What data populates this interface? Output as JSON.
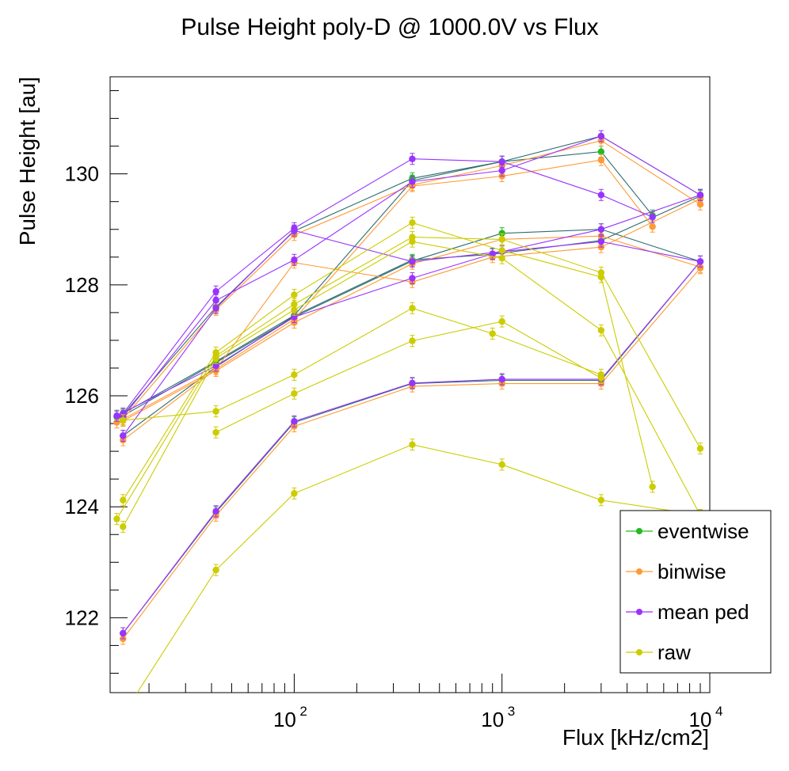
{
  "chart_data": {
    "type": "line",
    "title": "Pulse Height poly-D @ 1000.0V vs Flux",
    "xlabel": "Flux [kHz/cm2]",
    "ylabel": "Pulse Height [au]",
    "x_scale": "log",
    "xlim": [
      13,
      10000
    ],
    "ylim": [
      120.65,
      131.75
    ],
    "x_ticks": [
      {
        "base": "10",
        "exp": "2",
        "value": 100
      },
      {
        "base": "10",
        "exp": "3",
        "value": 1000
      },
      {
        "base": "10",
        "exp": "4",
        "value": 10000
      }
    ],
    "y_ticks": [
      {
        "label": "122",
        "value": 122
      },
      {
        "label": "124",
        "value": 124
      },
      {
        "label": "126",
        "value": 126
      },
      {
        "label": "128",
        "value": 128
      },
      {
        "label": "130",
        "value": 130
      }
    ],
    "grid": false,
    "legend_position": "bottom-right",
    "legend": [
      {
        "name": "eventwise",
        "color": "#22bb22"
      },
      {
        "name": "binwise",
        "color": "#ff9933"
      },
      {
        "name": "mean ped",
        "color": "#9933ff"
      },
      {
        "name": "raw",
        "color": "#cccc00"
      }
    ],
    "series": [
      {
        "name": "eventwise",
        "color": "#22bb22",
        "line_color": "#2e6e70",
        "points": [
          [
            15,
            125.66
          ],
          [
            42,
            127.6
          ],
          [
            100,
            128.97
          ],
          [
            370,
            129.92
          ],
          [
            1000,
            130.22
          ],
          [
            3000,
            130.68
          ],
          [
            9000,
            129.62
          ]
        ]
      },
      {
        "name": "eventwise",
        "color": "#22bb22",
        "line_color": "#2e6e70",
        "points": [
          [
            15,
            125.64
          ],
          [
            42,
            126.6
          ],
          [
            100,
            127.42
          ],
          [
            370,
            128.43
          ],
          [
            1000,
            128.93
          ],
          [
            3000,
            129.0
          ],
          [
            9000,
            128.42
          ]
        ]
      },
      {
        "name": "eventwise",
        "color": "#22bb22",
        "line_color": "#2e6e70",
        "points": [
          [
            14,
            125.62
          ],
          [
            42,
            126.62
          ],
          [
            100,
            127.45
          ],
          [
            370,
            129.88
          ],
          [
            1000,
            130.22
          ],
          [
            3000,
            130.4
          ],
          [
            5300,
            129.25
          ]
        ]
      },
      {
        "name": "eventwise",
        "color": "#22bb22",
        "line_color": "#2e6e70",
        "points": [
          [
            15,
            125.28
          ],
          [
            42,
            126.52
          ],
          [
            100,
            127.44
          ],
          [
            370,
            128.45
          ],
          [
            900,
            128.55
          ],
          [
            3000,
            128.8
          ],
          [
            9000,
            129.6
          ]
        ]
      },
      {
        "name": "eventwise",
        "color": "#22bb22",
        "line_color": "#2e6e70",
        "points": [
          [
            15,
            121.72
          ],
          [
            42,
            123.9
          ],
          [
            100,
            125.52
          ],
          [
            370,
            126.22
          ],
          [
            1000,
            126.28
          ],
          [
            3000,
            126.28
          ],
          [
            9000,
            128.42
          ]
        ]
      },
      {
        "name": "binwise",
        "color": "#ff9933",
        "line_color": "#ff9933",
        "points": [
          [
            15,
            125.58
          ],
          [
            42,
            127.55
          ],
          [
            100,
            128.9
          ],
          [
            370,
            129.8
          ],
          [
            1000,
            130.15
          ],
          [
            3000,
            130.6
          ],
          [
            9000,
            129.45
          ]
        ]
      },
      {
        "name": "binwise",
        "color": "#ff9933",
        "line_color": "#ff9933",
        "points": [
          [
            15,
            125.55
          ],
          [
            42,
            126.45
          ],
          [
            100,
            127.32
          ],
          [
            370,
            128.38
          ],
          [
            1000,
            128.82
          ],
          [
            3000,
            128.88
          ],
          [
            9000,
            128.32
          ]
        ]
      },
      {
        "name": "binwise",
        "color": "#ff9933",
        "line_color": "#ff9933",
        "points": [
          [
            14,
            125.52
          ],
          [
            42,
            126.48
          ],
          [
            100,
            127.38
          ],
          [
            370,
            129.78
          ],
          [
            1000,
            129.96
          ],
          [
            3000,
            130.25
          ],
          [
            5300,
            129.05
          ]
        ]
      },
      {
        "name": "binwise",
        "color": "#ff9933",
        "line_color": "#ff9933",
        "points": [
          [
            15,
            125.2
          ],
          [
            42,
            126.48
          ],
          [
            100,
            128.4
          ],
          [
            370,
            128.05
          ],
          [
            900,
            128.5
          ],
          [
            3000,
            128.68
          ],
          [
            9000,
            129.55
          ]
        ]
      },
      {
        "name": "binwise",
        "color": "#ff9933",
        "line_color": "#ff9933",
        "points": [
          [
            15,
            121.62
          ],
          [
            42,
            123.84
          ],
          [
            100,
            125.45
          ],
          [
            370,
            126.17
          ],
          [
            1000,
            126.22
          ],
          [
            3000,
            126.22
          ],
          [
            9000,
            128.3
          ]
        ]
      },
      {
        "name": "mean ped",
        "color": "#9933ff",
        "line_color": "#9933ff",
        "points": [
          [
            15,
            125.68
          ],
          [
            42,
            127.88
          ],
          [
            100,
            129.02
          ],
          [
            370,
            130.27
          ],
          [
            1000,
            130.22
          ],
          [
            3000,
            129.62
          ],
          [
            5300,
            129.22
          ]
        ]
      },
      {
        "name": "mean ped",
        "color": "#9933ff",
        "line_color": "#9933ff",
        "points": [
          [
            15,
            125.62
          ],
          [
            42,
            127.72
          ],
          [
            100,
            128.45
          ],
          [
            370,
            129.86
          ],
          [
            1000,
            130.06
          ],
          [
            3000,
            130.68
          ],
          [
            9000,
            129.62
          ]
        ]
      },
      {
        "name": "mean ped",
        "color": "#9933ff",
        "line_color": "#9933ff",
        "points": [
          [
            14,
            125.64
          ],
          [
            42,
            126.54
          ],
          [
            100,
            127.42
          ],
          [
            370,
            128.12
          ],
          [
            900,
            128.56
          ],
          [
            3000,
            129.0
          ],
          [
            9000,
            129.62
          ]
        ]
      },
      {
        "name": "mean ped",
        "color": "#9933ff",
        "line_color": "#9933ff",
        "points": [
          [
            15,
            125.28
          ],
          [
            42,
            127.58
          ],
          [
            100,
            128.98
          ],
          [
            370,
            128.42
          ],
          [
            1000,
            128.6
          ],
          [
            3000,
            128.78
          ],
          [
            9000,
            128.42
          ]
        ]
      },
      {
        "name": "mean ped",
        "color": "#9933ff",
        "line_color": "#9933ff",
        "points": [
          [
            15,
            121.72
          ],
          [
            42,
            123.92
          ],
          [
            100,
            125.54
          ],
          [
            370,
            126.23
          ],
          [
            1000,
            126.3
          ],
          [
            3000,
            126.3
          ],
          [
            9000,
            128.42
          ]
        ]
      },
      {
        "name": "raw",
        "color": "#cccc00",
        "line_color": "#cccc00",
        "points": [
          [
            15,
            124.12
          ],
          [
            42,
            126.78
          ],
          [
            100,
            127.82
          ],
          [
            370,
            129.12
          ],
          [
            1000,
            128.62
          ],
          [
            3000,
            128.14
          ],
          [
            5300,
            124.36
          ]
        ]
      },
      {
        "name": "raw",
        "color": "#cccc00",
        "line_color": "#cccc00",
        "points": [
          [
            14,
            123.78
          ],
          [
            42,
            126.72
          ],
          [
            100,
            127.65
          ],
          [
            370,
            128.86
          ],
          [
            1000,
            128.82
          ],
          [
            3000,
            128.22
          ],
          [
            9000,
            125.05
          ]
        ]
      },
      {
        "name": "raw",
        "color": "#cccc00",
        "line_color": "#cccc00",
        "points": [
          [
            15,
            123.64
          ],
          [
            42,
            126.68
          ],
          [
            100,
            127.55
          ],
          [
            370,
            128.78
          ],
          [
            1000,
            128.48
          ],
          [
            3000,
            127.18
          ],
          [
            9000,
            123.85
          ]
        ]
      },
      {
        "name": "raw",
        "color": "#cccc00",
        "line_color": "#cccc00",
        "points": [
          [
            15,
            125.56
          ],
          [
            42,
            125.72
          ],
          [
            100,
            126.38
          ],
          [
            370,
            127.58
          ],
          [
            900,
            127.12
          ],
          [
            3000,
            126.38
          ]
        ]
      },
      {
        "name": "raw",
        "color": "#cccc00",
        "line_color": "#cccc00",
        "points": [
          [
            42,
            125.34
          ],
          [
            100,
            126.04
          ],
          [
            370,
            126.99
          ],
          [
            1000,
            127.34
          ],
          [
            3000,
            126.32
          ]
        ]
      },
      {
        "name": "raw",
        "color": "#cccc00",
        "line_color": "#cccc00",
        "points": [
          [
            15,
            120.25
          ],
          [
            42,
            122.86
          ],
          [
            100,
            124.24
          ],
          [
            370,
            125.12
          ],
          [
            1000,
            124.76
          ],
          [
            3000,
            124.12
          ],
          [
            9000,
            123.85
          ]
        ]
      }
    ]
  }
}
